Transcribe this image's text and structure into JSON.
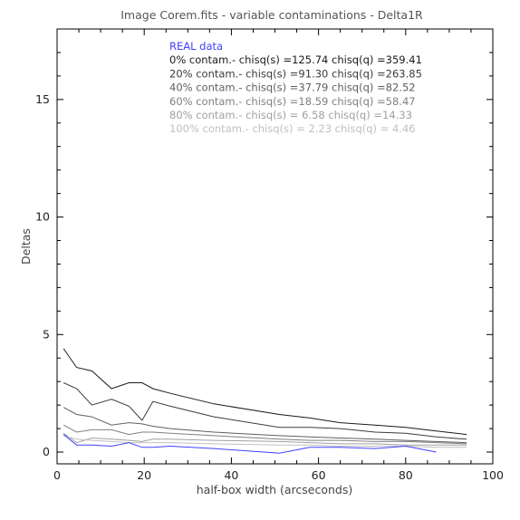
{
  "chart_data": {
    "type": "line",
    "title": "Image Corem.fits - variable contaminations - Delta1R",
    "xlabel": "half-box width (arcseconds)",
    "ylabel": "Deltas",
    "xlim": [
      0,
      100
    ],
    "ylim": [
      -0.5,
      18
    ],
    "xticks": [
      0,
      20,
      40,
      60,
      80,
      100
    ],
    "yticks": [
      0,
      5,
      10,
      15
    ],
    "grid": false,
    "legend_position": "top-center",
    "legend": [
      {
        "text": "REAL data",
        "color": "#4040ff"
      },
      {
        "text": "0% contam.- chisq(s) =125.74 chisq(q) =359.41",
        "color": "#1a1a1a"
      },
      {
        "text": "20% contam.- chisq(s) =91.30 chisq(q) =263.85",
        "color": "#3c3c3c"
      },
      {
        "text": "40% contam.- chisq(s) =37.79 chisq(q) =82.52",
        "color": "#606060"
      },
      {
        "text": "60% contam.- chisq(s) =18.59 chisq(q) =58.47",
        "color": "#808080"
      },
      {
        "text": "80% contam.- chisq(s) = 6.58 chisq(q) =14.33",
        "color": "#a0a0a0"
      },
      {
        "text": "100% contam.- chisq(s) = 2.23 chisq(q) = 4.46",
        "color": "#c0c0c0"
      }
    ],
    "series": [
      {
        "name": "REAL data",
        "color": "#4040ff",
        "x": [
          1.5,
          4.5,
          8,
          12.5,
          16.5,
          19.5,
          22,
          26,
          36,
          51,
          58,
          65,
          73,
          80,
          87
        ],
        "y": [
          0.75,
          0.3,
          0.3,
          0.25,
          0.4,
          0.2,
          0.2,
          0.25,
          0.15,
          -0.05,
          0.2,
          0.2,
          0.15,
          0.25,
          0.0
        ]
      },
      {
        "name": "0% contam.- chisq(s) =125.74 chisq(q) =359.41",
        "color": "#1a1a1a",
        "x": [
          1.5,
          4.5,
          8,
          12.5,
          16.5,
          19.5,
          22,
          26,
          36,
          51,
          58,
          65,
          73,
          80,
          87,
          94
        ],
        "y": [
          4.4,
          3.6,
          3.45,
          2.7,
          2.95,
          2.95,
          2.7,
          2.5,
          2.05,
          1.6,
          1.45,
          1.25,
          1.15,
          1.05,
          0.9,
          0.75
        ]
      },
      {
        "name": "20% contam.- chisq(s) =91.30 chisq(q) =263.85",
        "color": "#3c3c3c",
        "x": [
          1.5,
          4.5,
          8,
          12.5,
          16.5,
          19.5,
          22,
          26,
          36,
          51,
          58,
          65,
          73,
          80,
          87,
          94
        ],
        "y": [
          2.95,
          2.7,
          2.0,
          2.25,
          1.95,
          1.35,
          2.15,
          1.95,
          1.5,
          1.05,
          1.05,
          1.0,
          0.85,
          0.8,
          0.65,
          0.55
        ]
      },
      {
        "name": "40% contam.- chisq(s) =37.79 chisq(q) =82.52",
        "color": "#606060",
        "x": [
          1.5,
          4.5,
          8,
          12.5,
          16.5,
          19.5,
          22,
          26,
          36,
          51,
          58,
          65,
          73,
          80,
          87,
          94
        ],
        "y": [
          1.9,
          1.6,
          1.5,
          1.15,
          1.25,
          1.2,
          1.1,
          1.0,
          0.85,
          0.7,
          0.65,
          0.6,
          0.55,
          0.5,
          0.45,
          0.4
        ]
      },
      {
        "name": "60% contam.- chisq(s) =18.59 chisq(q) =58.47",
        "color": "#808080",
        "x": [
          1.5,
          4.5,
          8,
          12.5,
          16.5,
          19.5,
          22,
          26,
          36,
          51,
          58,
          65,
          73,
          80,
          87,
          94
        ],
        "y": [
          1.15,
          0.85,
          0.95,
          0.95,
          0.75,
          0.85,
          0.85,
          0.8,
          0.7,
          0.55,
          0.5,
          0.5,
          0.45,
          0.45,
          0.4,
          0.35
        ]
      },
      {
        "name": "80% contam.- chisq(s) = 6.58 chisq(q) =14.33",
        "color": "#a0a0a0",
        "x": [
          1.5,
          4.5,
          8,
          12.5,
          16.5,
          19.5,
          22,
          26,
          36,
          51,
          58,
          65,
          73,
          80,
          87,
          94
        ],
        "y": [
          0.8,
          0.4,
          0.6,
          0.55,
          0.5,
          0.45,
          0.55,
          0.55,
          0.5,
          0.45,
          0.4,
          0.35,
          0.35,
          0.3,
          0.3,
          0.3
        ]
      },
      {
        "name": "100% contam.- chisq(s) = 2.23 chisq(q) = 4.46",
        "color": "#c0c0c0",
        "x": [
          1.5,
          4.5,
          8,
          12.5,
          16.5,
          19.5,
          22,
          26,
          36,
          51,
          58,
          65,
          73,
          80,
          87,
          94
        ],
        "y": [
          0.7,
          0.55,
          0.5,
          0.45,
          0.4,
          0.4,
          0.4,
          0.4,
          0.35,
          0.3,
          0.3,
          0.25,
          0.25,
          0.25,
          0.2,
          0.2
        ]
      }
    ]
  }
}
